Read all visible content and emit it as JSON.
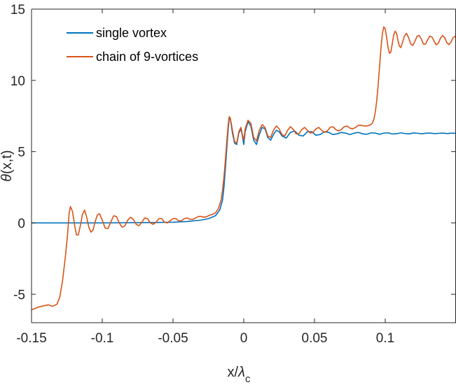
{
  "chart_data": {
    "type": "line",
    "title": "",
    "xlabel": {
      "base": "x/",
      "symbol": "λ",
      "sub": "c"
    },
    "ylabel": {
      "symbol": "θ",
      "rest": "(x,t)"
    },
    "xlim": [
      -0.15,
      0.15
    ],
    "ylim": [
      -7,
      15
    ],
    "xticks": [
      -0.15,
      -0.1,
      -0.05,
      0,
      0.05,
      0.1
    ],
    "xtick_labels": [
      "-0.15",
      "-0.1",
      "-0.05",
      "0",
      "0.05",
      "0.1"
    ],
    "yticks": [
      -5,
      0,
      5,
      10,
      15
    ],
    "ytick_labels": [
      "-5",
      "0",
      "5",
      "10",
      "15"
    ],
    "grid": false,
    "legend_position": "top-left",
    "series": [
      {
        "name": "single vortex",
        "color": "#0072BD",
        "points": [
          [
            -0.15,
            0.0
          ],
          [
            -0.1,
            0.0
          ],
          [
            -0.07,
            0.02
          ],
          [
            -0.05,
            0.05
          ],
          [
            -0.04,
            0.1
          ],
          [
            -0.03,
            0.2
          ],
          [
            -0.025,
            0.3
          ],
          [
            -0.02,
            0.5
          ],
          [
            -0.017,
            0.9
          ],
          [
            -0.015,
            1.6
          ],
          [
            -0.014,
            2.5
          ],
          [
            -0.013,
            3.8
          ],
          [
            -0.012,
            5.2
          ],
          [
            -0.011,
            6.6
          ],
          [
            -0.0103,
            7.3
          ],
          [
            -0.0095,
            7.3
          ],
          [
            -0.008,
            6.3
          ],
          [
            -0.0065,
            5.6
          ],
          [
            -0.005,
            5.5
          ],
          [
            -0.0035,
            6.3
          ],
          [
            -0.002,
            6.6
          ],
          [
            -0.001,
            6.1
          ],
          [
            0.0,
            5.5
          ],
          [
            0.001,
            6.4
          ],
          [
            0.003,
            7.1
          ],
          [
            0.005,
            6.8
          ],
          [
            0.007,
            5.8
          ],
          [
            0.009,
            5.5
          ],
          [
            0.011,
            6.2
          ],
          [
            0.013,
            6.7
          ],
          [
            0.015,
            6.6
          ],
          [
            0.017,
            6.0
          ],
          [
            0.019,
            5.8
          ],
          [
            0.021,
            6.2
          ],
          [
            0.023,
            6.5
          ],
          [
            0.025,
            6.4
          ],
          [
            0.027,
            6.1
          ],
          [
            0.03,
            5.95
          ],
          [
            0.033,
            6.35
          ],
          [
            0.036,
            6.45
          ],
          [
            0.039,
            6.15
          ],
          [
            0.042,
            6.1
          ],
          [
            0.045,
            6.4
          ],
          [
            0.048,
            6.4
          ],
          [
            0.051,
            6.15
          ],
          [
            0.054,
            6.2
          ],
          [
            0.057,
            6.4
          ],
          [
            0.06,
            6.35
          ],
          [
            0.063,
            6.2
          ],
          [
            0.066,
            6.25
          ],
          [
            0.069,
            6.35
          ],
          [
            0.072,
            6.3
          ],
          [
            0.075,
            6.2
          ],
          [
            0.078,
            6.3
          ],
          [
            0.081,
            6.35
          ],
          [
            0.084,
            6.25
          ],
          [
            0.087,
            6.22
          ],
          [
            0.09,
            6.32
          ],
          [
            0.093,
            6.3
          ],
          [
            0.096,
            6.22
          ],
          [
            0.099,
            6.3
          ],
          [
            0.102,
            6.32
          ],
          [
            0.105,
            6.24
          ],
          [
            0.108,
            6.26
          ],
          [
            0.111,
            6.32
          ],
          [
            0.114,
            6.27
          ],
          [
            0.117,
            6.25
          ],
          [
            0.12,
            6.31
          ],
          [
            0.123,
            6.29
          ],
          [
            0.126,
            6.25
          ],
          [
            0.129,
            6.3
          ],
          [
            0.132,
            6.3
          ],
          [
            0.135,
            6.26
          ],
          [
            0.138,
            6.29
          ],
          [
            0.141,
            6.3
          ],
          [
            0.144,
            6.27
          ],
          [
            0.147,
            6.3
          ],
          [
            0.15,
            6.29
          ]
        ]
      },
      {
        "name": "chain of 9-vortices",
        "color": "#D95319",
        "points": [
          [
            -0.15,
            -6.1
          ],
          [
            -0.145,
            -5.9
          ],
          [
            -0.141,
            -5.8
          ],
          [
            -0.138,
            -5.75
          ],
          [
            -0.135,
            -5.85
          ],
          [
            -0.132,
            -5.7
          ],
          [
            -0.13,
            -5.2
          ],
          [
            -0.128,
            -4.0
          ],
          [
            -0.126,
            -2.3
          ],
          [
            -0.1245,
            -0.8
          ],
          [
            -0.1235,
            0.6
          ],
          [
            -0.1225,
            1.15
          ],
          [
            -0.121,
            0.8
          ],
          [
            -0.1195,
            -0.2
          ],
          [
            -0.1182,
            -0.85
          ],
          [
            -0.117,
            -0.85
          ],
          [
            -0.1155,
            -0.2
          ],
          [
            -0.114,
            0.6
          ],
          [
            -0.1125,
            0.9
          ],
          [
            -0.111,
            0.4
          ],
          [
            -0.1095,
            -0.3
          ],
          [
            -0.108,
            -0.65
          ],
          [
            -0.1065,
            -0.5
          ],
          [
            -0.105,
            0.1
          ],
          [
            -0.1035,
            0.55
          ],
          [
            -0.102,
            0.65
          ],
          [
            -0.1,
            0.2
          ],
          [
            -0.098,
            -0.35
          ],
          [
            -0.096,
            -0.4
          ],
          [
            -0.094,
            0.05
          ],
          [
            -0.092,
            0.5
          ],
          [
            -0.09,
            0.45
          ],
          [
            -0.088,
            0.0
          ],
          [
            -0.086,
            -0.3
          ],
          [
            -0.084,
            -0.2
          ],
          [
            -0.082,
            0.2
          ],
          [
            -0.08,
            0.4
          ],
          [
            -0.078,
            0.25
          ],
          [
            -0.076,
            -0.1
          ],
          [
            -0.074,
            -0.2
          ],
          [
            -0.072,
            0.05
          ],
          [
            -0.07,
            0.35
          ],
          [
            -0.068,
            0.3
          ],
          [
            -0.066,
            0.0
          ],
          [
            -0.064,
            -0.1
          ],
          [
            -0.062,
            0.05
          ],
          [
            -0.06,
            0.3
          ],
          [
            -0.058,
            0.3
          ],
          [
            -0.056,
            0.05
          ],
          [
            -0.054,
            0.0
          ],
          [
            -0.052,
            0.15
          ],
          [
            -0.05,
            0.3
          ],
          [
            -0.048,
            0.3
          ],
          [
            -0.046,
            0.15
          ],
          [
            -0.044,
            0.15
          ],
          [
            -0.042,
            0.3
          ],
          [
            -0.04,
            0.35
          ],
          [
            -0.038,
            0.25
          ],
          [
            -0.036,
            0.25
          ],
          [
            -0.034,
            0.35
          ],
          [
            -0.032,
            0.45
          ],
          [
            -0.03,
            0.45
          ],
          [
            -0.028,
            0.4
          ],
          [
            -0.026,
            0.45
          ],
          [
            -0.024,
            0.55
          ],
          [
            -0.022,
            0.6
          ],
          [
            -0.02,
            0.7
          ],
          [
            -0.018,
            1.0
          ],
          [
            -0.016,
            1.6
          ],
          [
            -0.015,
            2.3
          ],
          [
            -0.014,
            3.2
          ],
          [
            -0.013,
            4.4
          ],
          [
            -0.012,
            5.7
          ],
          [
            -0.011,
            6.9
          ],
          [
            -0.0103,
            7.45
          ],
          [
            -0.0095,
            7.35
          ],
          [
            -0.008,
            6.5
          ],
          [
            -0.0065,
            5.7
          ],
          [
            -0.005,
            5.6
          ],
          [
            -0.0035,
            6.4
          ],
          [
            -0.002,
            6.7
          ],
          [
            -0.001,
            6.2
          ],
          [
            0.0,
            5.8
          ],
          [
            0.001,
            6.6
          ],
          [
            0.003,
            7.2
          ],
          [
            0.005,
            7.0
          ],
          [
            0.007,
            6.0
          ],
          [
            0.009,
            5.75
          ],
          [
            0.011,
            6.5
          ],
          [
            0.013,
            6.9
          ],
          [
            0.015,
            6.7
          ],
          [
            0.017,
            6.1
          ],
          [
            0.019,
            6.0
          ],
          [
            0.021,
            6.5
          ],
          [
            0.023,
            6.8
          ],
          [
            0.025,
            6.6
          ],
          [
            0.027,
            6.2
          ],
          [
            0.029,
            6.1
          ],
          [
            0.031,
            6.5
          ],
          [
            0.033,
            6.75
          ],
          [
            0.035,
            6.55
          ],
          [
            0.037,
            6.25
          ],
          [
            0.039,
            6.25
          ],
          [
            0.041,
            6.55
          ],
          [
            0.043,
            6.7
          ],
          [
            0.045,
            6.5
          ],
          [
            0.047,
            6.3
          ],
          [
            0.049,
            6.35
          ],
          [
            0.051,
            6.6
          ],
          [
            0.053,
            6.7
          ],
          [
            0.055,
            6.5
          ],
          [
            0.057,
            6.35
          ],
          [
            0.059,
            6.45
          ],
          [
            0.061,
            6.7
          ],
          [
            0.063,
            6.75
          ],
          [
            0.065,
            6.55
          ],
          [
            0.067,
            6.45
          ],
          [
            0.069,
            6.55
          ],
          [
            0.071,
            6.75
          ],
          [
            0.073,
            6.8
          ],
          [
            0.075,
            6.65
          ],
          [
            0.077,
            6.6
          ],
          [
            0.079,
            6.7
          ],
          [
            0.081,
            6.85
          ],
          [
            0.083,
            6.85
          ],
          [
            0.085,
            6.8
          ],
          [
            0.087,
            6.8
          ],
          [
            0.089,
            6.85
          ],
          [
            0.091,
            7.0
          ],
          [
            0.092,
            7.3
          ],
          [
            0.093,
            7.8
          ],
          [
            0.094,
            8.6
          ],
          [
            0.095,
            9.7
          ],
          [
            0.096,
            11.0
          ],
          [
            0.097,
            12.3
          ],
          [
            0.098,
            13.3
          ],
          [
            0.099,
            13.75
          ],
          [
            0.1,
            13.6
          ],
          [
            0.101,
            13.0
          ],
          [
            0.102,
            12.3
          ],
          [
            0.103,
            11.9
          ],
          [
            0.104,
            12.0
          ],
          [
            0.105,
            12.6
          ],
          [
            0.106,
            13.2
          ],
          [
            0.107,
            13.45
          ],
          [
            0.108,
            13.3
          ],
          [
            0.109,
            12.8
          ],
          [
            0.11,
            12.4
          ],
          [
            0.111,
            12.3
          ],
          [
            0.112,
            12.6
          ],
          [
            0.1135,
            13.1
          ],
          [
            0.115,
            13.3
          ],
          [
            0.1165,
            13.0
          ],
          [
            0.118,
            12.55
          ],
          [
            0.1195,
            12.45
          ],
          [
            0.121,
            12.75
          ],
          [
            0.1225,
            13.1
          ],
          [
            0.124,
            13.15
          ],
          [
            0.1255,
            12.9
          ],
          [
            0.127,
            12.55
          ],
          [
            0.1285,
            12.55
          ],
          [
            0.13,
            12.85
          ],
          [
            0.1315,
            13.1
          ],
          [
            0.133,
            13.05
          ],
          [
            0.1345,
            12.75
          ],
          [
            0.136,
            12.5
          ],
          [
            0.1375,
            12.6
          ],
          [
            0.139,
            12.95
          ],
          [
            0.1405,
            13.15
          ],
          [
            0.142,
            13.0
          ],
          [
            0.1435,
            12.65
          ],
          [
            0.145,
            12.5
          ],
          [
            0.1465,
            12.7
          ],
          [
            0.148,
            13.0
          ],
          [
            0.1495,
            13.1
          ],
          [
            0.15,
            13.05
          ]
        ]
      }
    ]
  }
}
